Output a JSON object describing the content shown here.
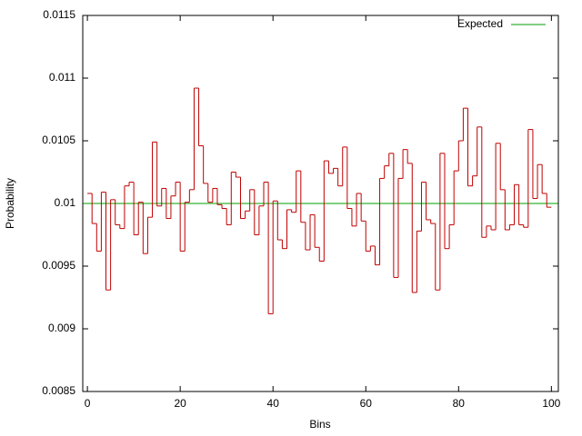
{
  "chart_data": {
    "type": "steps",
    "xlabel": "Bins",
    "ylabel": "Probability",
    "x": [
      0,
      1,
      2,
      3,
      4,
      5,
      6,
      7,
      8,
      9,
      10,
      11,
      12,
      13,
      14,
      15,
      16,
      17,
      18,
      19,
      20,
      21,
      22,
      23,
      24,
      25,
      26,
      27,
      28,
      29,
      30,
      31,
      32,
      33,
      34,
      35,
      36,
      37,
      38,
      39,
      40,
      41,
      42,
      43,
      44,
      45,
      46,
      47,
      48,
      49,
      50,
      51,
      52,
      53,
      54,
      55,
      56,
      57,
      58,
      59,
      60,
      61,
      62,
      63,
      64,
      65,
      66,
      67,
      68,
      69,
      70,
      71,
      72,
      73,
      74,
      75,
      76,
      77,
      78,
      79,
      80,
      81,
      82,
      83,
      84,
      85,
      86,
      87,
      88,
      89,
      90,
      91,
      92,
      93,
      94,
      95,
      96,
      97,
      98,
      99
    ],
    "values": [
      0.01008,
      0.00984,
      0.00962,
      0.01009,
      0.00931,
      0.01003,
      0.00983,
      0.0098,
      0.01014,
      0.01017,
      0.00975,
      0.01001,
      0.0096,
      0.00989,
      0.01049,
      0.00998,
      0.01012,
      0.00988,
      0.01006,
      0.01017,
      0.00962,
      0.01001,
      0.01011,
      0.01092,
      0.01046,
      0.01016,
      0.01001,
      0.01012,
      0.00999,
      0.00996,
      0.00983,
      0.01025,
      0.01021,
      0.00988,
      0.00994,
      0.01011,
      0.00975,
      0.00998,
      0.01017,
      0.00912,
      0.01002,
      0.00971,
      0.00964,
      0.00995,
      0.00993,
      0.01026,
      0.00985,
      0.00963,
      0.00991,
      0.00965,
      0.00954,
      0.01034,
      0.01024,
      0.01028,
      0.01014,
      0.01045,
      0.00996,
      0.00982,
      0.01008,
      0.00986,
      0.00962,
      0.00966,
      0.00951,
      0.0102,
      0.0103,
      0.0104,
      0.00941,
      0.0102,
      0.01043,
      0.01032,
      0.00929,
      0.00978,
      0.01017,
      0.00987,
      0.00984,
      0.00931,
      0.0104,
      0.00964,
      0.00983,
      0.01026,
      0.0105,
      0.01076,
      0.01014,
      0.01022,
      0.01061,
      0.00973,
      0.00982,
      0.00979,
      0.01048,
      0.01011,
      0.00979,
      0.00983,
      0.01015,
      0.00983,
      0.00981,
      0.01059,
      0.01004,
      0.01031,
      0.01008,
      0.00997
    ],
    "color": "#c00000",
    "expected": {
      "name": "Expected",
      "value": 0.01,
      "color": "#00a000"
    },
    "xlim": [
      -1,
      101.5
    ],
    "ylim": [
      0.0085,
      0.0115
    ],
    "xticks": [
      0,
      20,
      40,
      60,
      80,
      100
    ],
    "yticks": [
      0.0085,
      0.009,
      0.0095,
      0.01,
      0.0105,
      0.011,
      0.0115
    ],
    "legend": "top-right"
  }
}
